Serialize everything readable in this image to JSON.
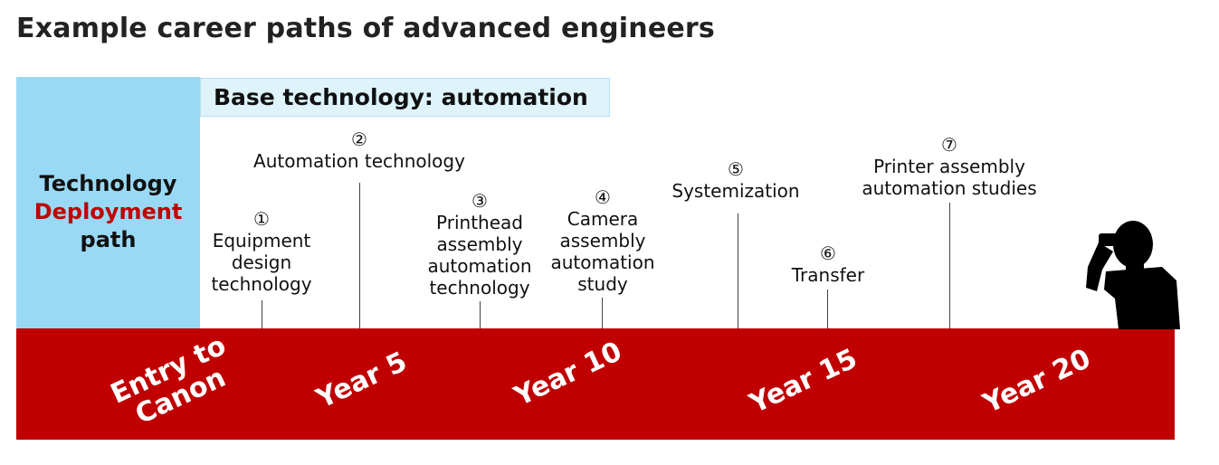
{
  "title": "Example career paths of advanced engineers",
  "side_panel": {
    "line1": "Technology",
    "line2": "Deployment",
    "line3": "path"
  },
  "base_technology": "Base technology: automation",
  "milestones": [
    {
      "num": "①",
      "lines": [
        "Equipment",
        "design",
        "technology"
      ]
    },
    {
      "num": "②",
      "lines": [
        "Automation technology"
      ]
    },
    {
      "num": "③",
      "lines": [
        "Printhead",
        "assembly",
        "automation",
        "technology"
      ]
    },
    {
      "num": "④",
      "lines": [
        "Camera",
        "assembly",
        "automation",
        "study"
      ]
    },
    {
      "num": "⑤",
      "lines": [
        "Systemization"
      ]
    },
    {
      "num": "⑥",
      "lines": [
        "Transfer"
      ]
    },
    {
      "num": "⑦",
      "lines": [
        "Printer assembly",
        "automation studies"
      ]
    }
  ],
  "timeline": {
    "entry_line1": "Entry to",
    "entry_line2": "Canon",
    "year5": "Year 5",
    "year10": "Year 10",
    "year15": "Year 15",
    "year20": "Year 20"
  },
  "colors": {
    "timeline_band": "#c00000",
    "side_panel": "#99d9f5",
    "base_box": "#dff3fb",
    "accent_red": "#c00000"
  },
  "icons": {
    "person": "person-silhouette-icon"
  }
}
